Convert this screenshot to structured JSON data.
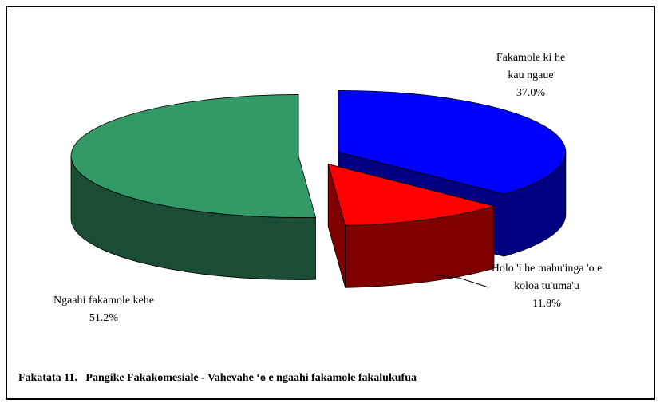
{
  "chart_data": {
    "type": "pie",
    "title": "Fakatata 11.   Pangike Fakakomesiale - Vahevahe ‘o e ngaahi fakamole fakalukufua",
    "categories": [
      "Fakamole ki he kau ngaue",
      "Holo 'i he mahu'inga 'o e koloa tu'uma'u",
      "Ngaahi fakamole kehe"
    ],
    "values": [
      37.0,
      11.8,
      51.2
    ],
    "value_labels": [
      "37.0%",
      "11.8%",
      "51.2%"
    ],
    "colors": [
      "#0000ff",
      "#ff0000",
      "#339966"
    ]
  }
}
